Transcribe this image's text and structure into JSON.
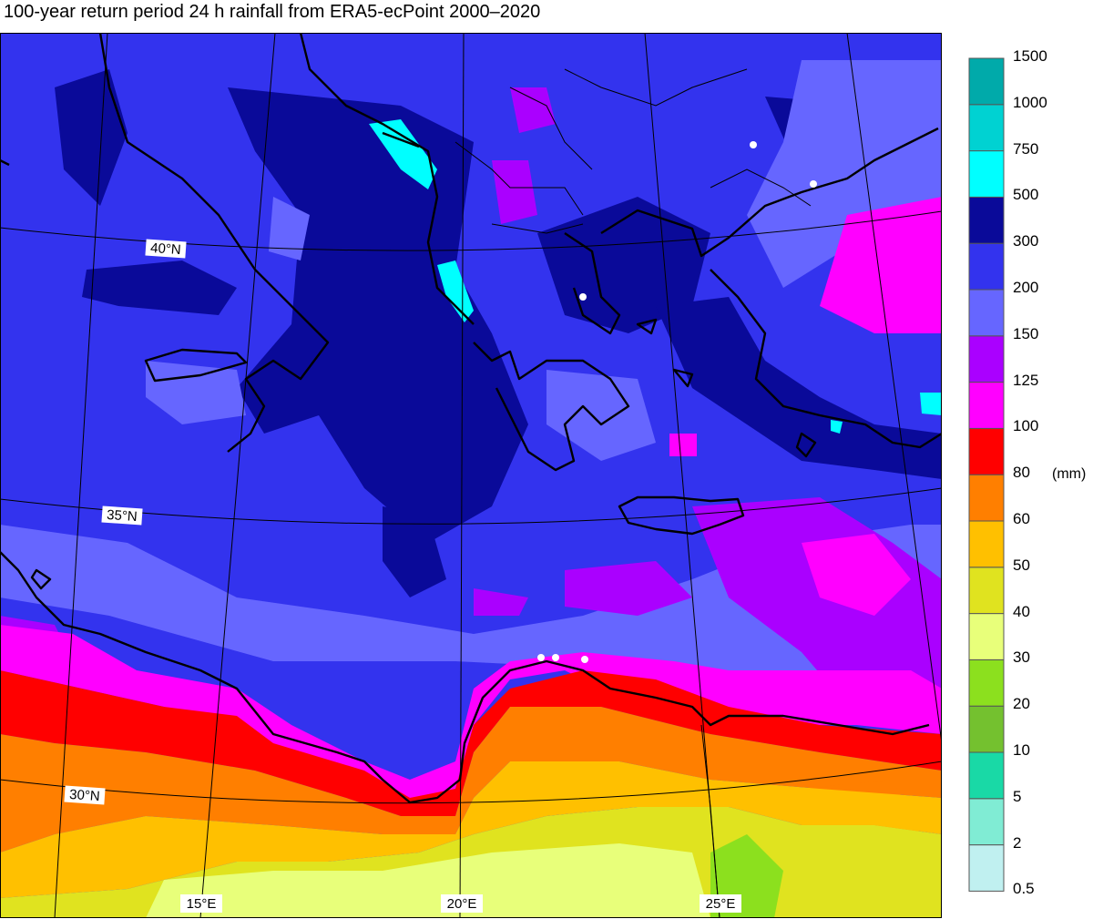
{
  "title": "100-year return period 24 h rainfall from ERA5-ecPoint 2000–2020",
  "map": {
    "parallel_labels": [
      "40°N",
      "35°N",
      "30°N"
    ],
    "meridian_labels": [
      "15°E",
      "20°E",
      "25°E"
    ]
  },
  "legend": {
    "unit": "(mm)",
    "thresholds": [
      "0.5",
      "2",
      "5",
      "10",
      "20",
      "30",
      "40",
      "50",
      "60",
      "80",
      "100",
      "125",
      "150",
      "200",
      "300",
      "500",
      "750",
      "1000",
      "1500"
    ],
    "colors": [
      "#c0f0f0",
      "#80ecd4",
      "#19d9a6",
      "#74c12f",
      "#8ce01e",
      "#e8ff7a",
      "#e0e31f",
      "#ffc000",
      "#ff7f00",
      "#ff0000",
      "#ff00ff",
      "#aa00ff",
      "#6666ff",
      "#3333ee",
      "#0a0a99",
      "#00ffff",
      "#00d2d2",
      "#00aaaa"
    ]
  }
}
